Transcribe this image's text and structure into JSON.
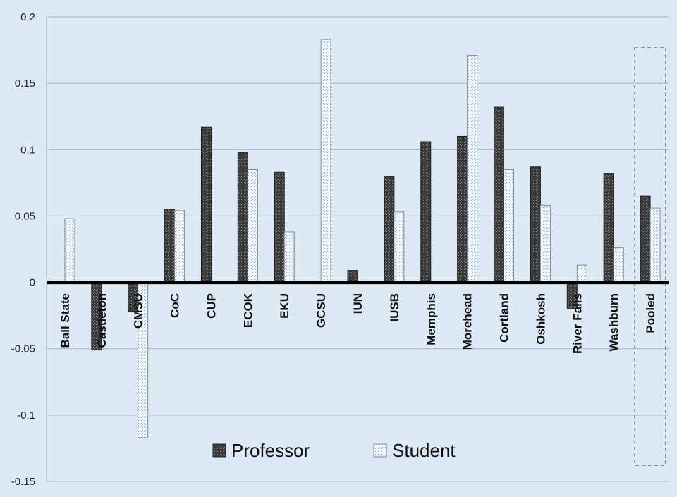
{
  "chart_data": {
    "type": "bar",
    "categories": [
      "Ball State",
      "Castleton",
      "CMSU",
      "CoC",
      "CUP",
      "ECOK",
      "EKU",
      "GCSU",
      "IUN",
      "IUSB",
      "Memphis",
      "Morehead",
      "Cortland",
      "Oshkosh",
      "River Falls",
      "Washburn",
      "Pooled"
    ],
    "series": [
      {
        "name": "Professor",
        "values": [
          0,
          -0.051,
          -0.022,
          0.055,
          0.117,
          0.098,
          0.083,
          0,
          0.009,
          0.08,
          0.106,
          0.11,
          0.132,
          0.087,
          -0.02,
          0.082,
          0.065
        ]
      },
      {
        "name": "Student",
        "values": [
          0.048,
          0,
          -0.117,
          0.054,
          0,
          0.085,
          0.038,
          0.183,
          0,
          0.053,
          0,
          0.171,
          0.085,
          0.058,
          0.013,
          0.026,
          0.056
        ]
      }
    ],
    "yticks": [
      "0.2",
      "0.15",
      "0.1",
      "0.05",
      "0",
      "-0.05",
      "-0.1",
      "-0.15"
    ],
    "ylim": [
      -0.15,
      0.2
    ],
    "grid": true,
    "legend_position": "bottom-center",
    "highlighted_category": "Pooled",
    "colors": {
      "background": "#dde9f5",
      "professor": "#3a3a3a",
      "student": "#eef3f7",
      "grid": "#9fb4c8",
      "zero_line": "#000000"
    }
  }
}
